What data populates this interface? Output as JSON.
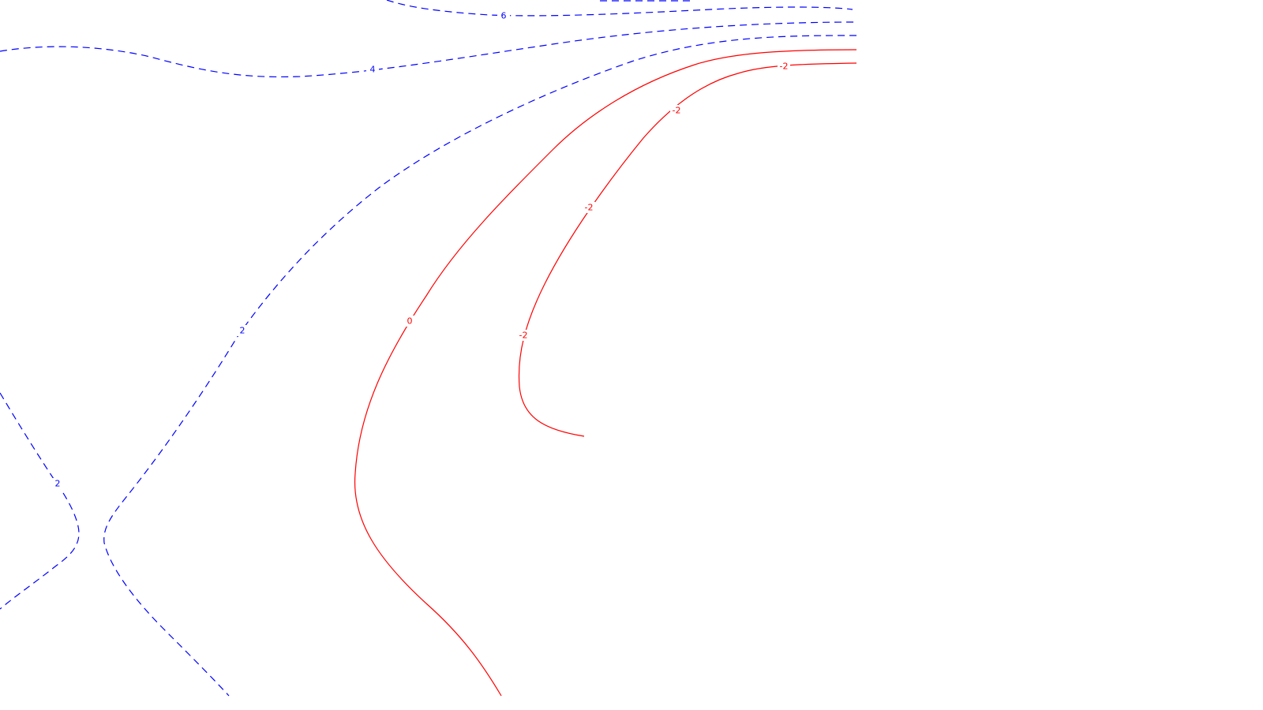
{
  "chart_data": {
    "type": "contour",
    "title": "",
    "xlabel": "",
    "ylabel": "",
    "grid": false,
    "legend": "none",
    "positive_style": "dashed",
    "negative_style": "solid",
    "series": [
      {
        "level": 6,
        "style": "dashed",
        "color": "#0000ff",
        "label": "6"
      },
      {
        "level": 4,
        "style": "dashed",
        "color": "#0000ff",
        "label": "4"
      },
      {
        "level": 2,
        "style": "dashed",
        "color": "#0000ff",
        "label": "2"
      },
      {
        "level": 2,
        "style": "dashed",
        "color": "#0000ff",
        "label": "2"
      },
      {
        "level": 2,
        "style": "dashed",
        "color": "#0000ff",
        "label": ""
      },
      {
        "level": 0,
        "style": "solid",
        "color": "#ff0000",
        "label": "0"
      },
      {
        "level": -2,
        "style": "solid",
        "color": "#ff0000",
        "label": "-2"
      },
      {
        "level": -2,
        "style": "solid",
        "color": "#ff0000",
        "label": "-2"
      },
      {
        "level": -2,
        "style": "solid",
        "color": "#ff0000",
        "label": "-2"
      },
      {
        "level": -2,
        "style": "solid",
        "color": "#ff0000",
        "label": "-2"
      }
    ],
    "colors": {
      "positive": "#0000ff",
      "negative": "#ff0000",
      "background": "#ffffff"
    }
  }
}
